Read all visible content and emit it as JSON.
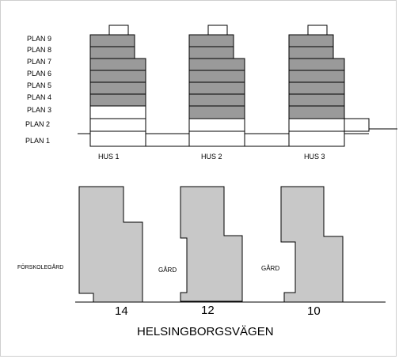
{
  "floors": [
    "PLAN 9",
    "PLAN 8",
    "PLAN 7",
    "PLAN 6",
    "PLAN 5",
    "PLAN 4",
    "PLAN 3",
    "PLAN 2",
    "PLAN 1"
  ],
  "buildings": [
    "HUS 1",
    "HUS 2",
    "HUS 3"
  ],
  "yards": [
    "FÖRSKOLEGÅRD",
    "GÅRD",
    "GÅRD"
  ],
  "numbers": [
    "14",
    "12",
    "10"
  ],
  "street": "HELSINGBORGSVÄGEN",
  "colors": {
    "filled_floor": "#9a9a9a",
    "plot": "#c8c8c8",
    "line": "#000000"
  }
}
